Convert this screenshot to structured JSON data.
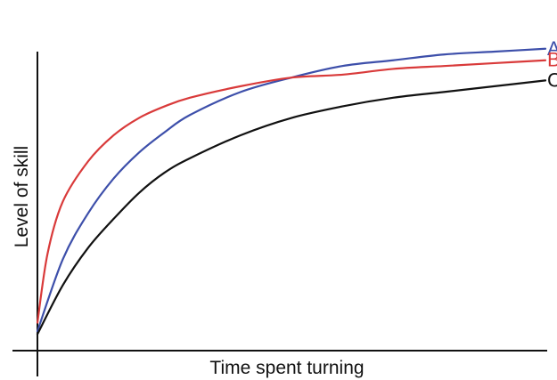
{
  "chart_data": {
    "type": "line",
    "title": "",
    "xlabel": "Time spent turning",
    "ylabel": "Level of skill",
    "xlim": [
      0,
      100
    ],
    "ylim": [
      0,
      100
    ],
    "grid": false,
    "legend": "end-of-line labels",
    "series": [
      {
        "name": "A",
        "color": "#3d4faa",
        "x": [
          0,
          5,
          10,
          15,
          20,
          25,
          30,
          40,
          50,
          60,
          70,
          80,
          90,
          100
        ],
        "y": [
          3,
          28,
          44,
          56,
          65,
          72,
          78,
          86,
          91,
          95,
          97,
          99,
          100,
          101
        ]
      },
      {
        "name": "B",
        "color": "#d93a3a",
        "x": [
          0,
          2,
          5,
          10,
          15,
          20,
          25,
          30,
          40,
          50,
          60,
          70,
          80,
          90,
          100
        ],
        "y": [
          6,
          30,
          48,
          62,
          71,
          77,
          81,
          84,
          88,
          91,
          92,
          94,
          95,
          96,
          97
        ]
      },
      {
        "name": "C",
        "color": "#111111",
        "x": [
          0,
          5,
          10,
          15,
          20,
          25,
          30,
          40,
          50,
          60,
          70,
          80,
          90,
          100
        ],
        "y": [
          2,
          19,
          32,
          42,
          51,
          58,
          63,
          71,
          77,
          81,
          84,
          86,
          88,
          90
        ]
      }
    ]
  }
}
